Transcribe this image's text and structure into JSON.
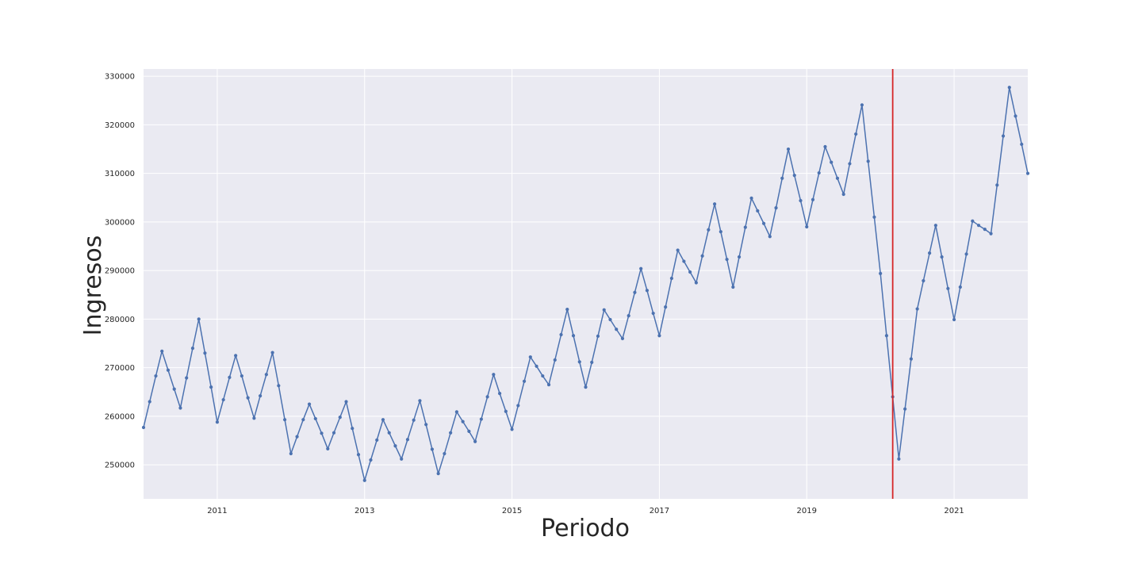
{
  "chart_data": {
    "type": "line",
    "title": "",
    "xlabel": "Periodo",
    "ylabel": "Ingresos",
    "x_start": "2010-01",
    "x_end": "2022-01",
    "xlim": [
      "2010-01",
      "2022-01"
    ],
    "ylim": [
      243000,
      331500
    ],
    "grid": true,
    "legend": "none",
    "x_ticks": [
      {
        "value": "2011-01",
        "label": "2011"
      },
      {
        "value": "2013-01",
        "label": "2013"
      },
      {
        "value": "2015-01",
        "label": "2015"
      },
      {
        "value": "2017-01",
        "label": "2017"
      },
      {
        "value": "2019-01",
        "label": "2019"
      },
      {
        "value": "2021-01",
        "label": "2021"
      }
    ],
    "y_ticks": [
      {
        "value": 250000,
        "label": "250000"
      },
      {
        "value": 260000,
        "label": "260000"
      },
      {
        "value": 270000,
        "label": "270000"
      },
      {
        "value": 280000,
        "label": "280000"
      },
      {
        "value": 290000,
        "label": "290000"
      },
      {
        "value": 300000,
        "label": "300000"
      },
      {
        "value": 310000,
        "label": "310000"
      },
      {
        "value": 320000,
        "label": "320000"
      },
      {
        "value": 330000,
        "label": "330000"
      }
    ],
    "vline": {
      "x": "2020-03",
      "color": "#d62728"
    },
    "series": [
      {
        "color": "#4c72b0",
        "x": [
          "2010-01",
          "2010-02",
          "2010-03",
          "2010-04",
          "2010-05",
          "2010-06",
          "2010-07",
          "2010-08",
          "2010-09",
          "2010-10",
          "2010-11",
          "2010-12",
          "2011-01",
          "2011-02",
          "2011-03",
          "2011-04",
          "2011-05",
          "2011-06",
          "2011-07",
          "2011-08",
          "2011-09",
          "2011-10",
          "2011-11",
          "2011-12",
          "2012-01",
          "2012-02",
          "2012-03",
          "2012-04",
          "2012-05",
          "2012-06",
          "2012-07",
          "2012-08",
          "2012-09",
          "2012-10",
          "2012-11",
          "2012-12",
          "2013-01",
          "2013-02",
          "2013-03",
          "2013-04",
          "2013-05",
          "2013-06",
          "2013-07",
          "2013-08",
          "2013-09",
          "2013-10",
          "2013-11",
          "2013-12",
          "2014-01",
          "2014-02",
          "2014-03",
          "2014-04",
          "2014-05",
          "2014-06",
          "2014-07",
          "2014-08",
          "2014-09",
          "2014-10",
          "2014-11",
          "2014-12",
          "2015-01",
          "2015-02",
          "2015-03",
          "2015-04",
          "2015-05",
          "2015-06",
          "2015-07",
          "2015-08",
          "2015-09",
          "2015-10",
          "2015-11",
          "2015-12",
          "2016-01",
          "2016-02",
          "2016-03",
          "2016-04",
          "2016-05",
          "2016-06",
          "2016-07",
          "2016-08",
          "2016-09",
          "2016-10",
          "2016-11",
          "2016-12",
          "2017-01",
          "2017-02",
          "2017-03",
          "2017-04",
          "2017-05",
          "2017-06",
          "2017-07",
          "2017-08",
          "2017-09",
          "2017-10",
          "2017-11",
          "2017-12",
          "2018-01",
          "2018-02",
          "2018-03",
          "2018-04",
          "2018-05",
          "2018-06",
          "2018-07",
          "2018-08",
          "2018-09",
          "2018-10",
          "2018-11",
          "2018-12",
          "2019-01",
          "2019-02",
          "2019-03",
          "2019-04",
          "2019-05",
          "2019-06",
          "2019-07",
          "2019-08",
          "2019-09",
          "2019-10",
          "2019-11",
          "2019-12",
          "2020-01",
          "2020-02",
          "2020-03",
          "2020-04",
          "2020-05",
          "2020-06",
          "2020-07",
          "2020-08",
          "2020-09",
          "2020-10",
          "2020-11",
          "2020-12",
          "2021-01",
          "2021-02",
          "2021-03",
          "2021-04",
          "2021-05",
          "2021-06",
          "2021-07",
          "2021-08",
          "2021-09",
          "2021-10",
          "2021-11",
          "2021-12",
          "2022-01"
        ],
        "values": [
          257700,
          263000,
          268300,
          273400,
          269500,
          265600,
          261700,
          267900,
          274000,
          280000,
          273000,
          266000,
          258800,
          263400,
          268000,
          272500,
          268300,
          263800,
          259600,
          264200,
          268600,
          273100,
          266300,
          259300,
          252300,
          255800,
          259300,
          262500,
          259500,
          256500,
          253300,
          256600,
          259800,
          263000,
          257500,
          252100,
          246800,
          251000,
          255100,
          259300,
          256600,
          253900,
          251200,
          255200,
          259200,
          263200,
          258300,
          253200,
          248200,
          252300,
          256600,
          260900,
          258900,
          256900,
          254800,
          259400,
          264000,
          268600,
          264700,
          261000,
          257300,
          262200,
          267200,
          272200,
          270300,
          268300,
          266500,
          271600,
          276800,
          282000,
          276600,
          271200,
          266000,
          271100,
          276500,
          281900,
          279900,
          277900,
          276000,
          280700,
          285500,
          290400,
          285900,
          281200,
          276600,
          282500,
          288400,
          294200,
          291900,
          289700,
          287500,
          293000,
          298400,
          303700,
          298000,
          292300,
          286600,
          292800,
          298900,
          304900,
          302300,
          299700,
          297000,
          302900,
          309000,
          315000,
          309600,
          304400,
          299000,
          304600,
          310100,
          315500,
          312300,
          309000,
          305700,
          312000,
          318100,
          324100,
          312500,
          301000,
          289400,
          276600,
          264000,
          251200,
          261500,
          271800,
          282100,
          287900,
          293600,
          299300,
          292800,
          286300,
          279900,
          286600,
          293400,
          300200,
          299300,
          298500,
          297600,
          307600,
          317700,
          327700,
          321800,
          316000,
          310000
        ]
      }
    ]
  }
}
